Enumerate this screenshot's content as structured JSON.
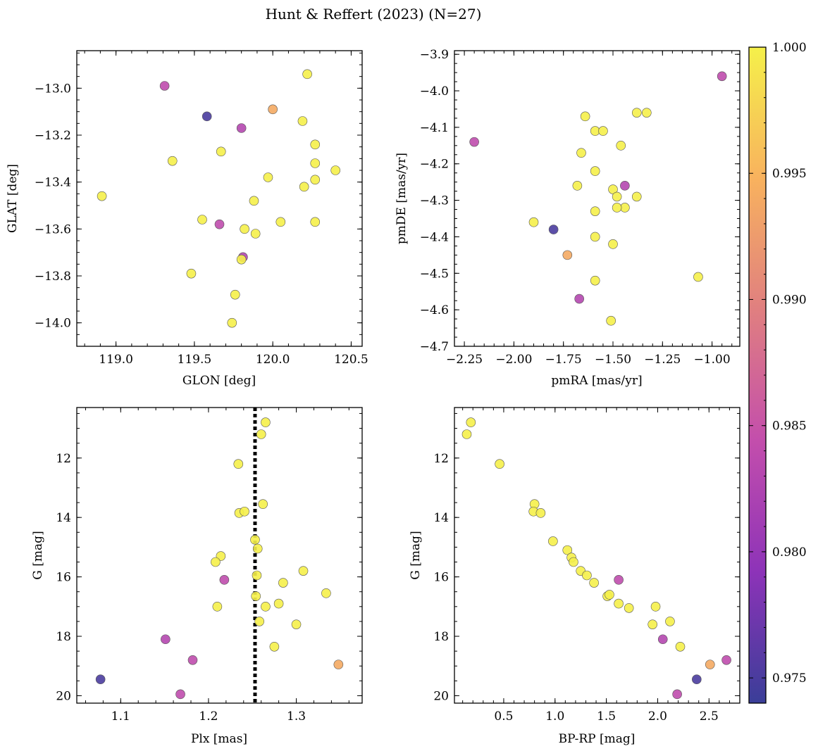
{
  "figure": {
    "title": "Hunt & Reffert (2023) (N=27)"
  },
  "colorbar": {
    "min": 0.974,
    "max": 1.0,
    "ticks": [
      0.975,
      0.98,
      0.985,
      0.99,
      0.995,
      1.0
    ],
    "tick_labels": [
      "0.975",
      "0.980",
      "0.985",
      "0.990",
      "0.995",
      "1.000"
    ],
    "colormap": "plasma",
    "stops": [
      "#3a3e98",
      "#8d33b8",
      "#c34eac",
      "#e07f80",
      "#f8b25e",
      "#f5f04a"
    ]
  },
  "chart_data": [
    {
      "type": "scatter",
      "panel": "top-left",
      "xlabel": "GLON [deg]",
      "ylabel": "GLAT [deg]",
      "xlim": [
        118.75,
        120.57
      ],
      "ylim": [
        -14.1,
        -12.84
      ],
      "xticks": [
        119.0,
        119.5,
        120.0,
        120.5
      ],
      "xtick_labels": [
        "119.0",
        "119.5",
        "120.0",
        "120.5"
      ],
      "yticks": [
        -13.0,
        -13.2,
        -13.4,
        -13.6,
        -13.8,
        -14.0
      ],
      "ytick_labels": [
        "−13.0",
        "−13.2",
        "−13.4",
        "−13.6",
        "−13.8",
        "−14.0"
      ],
      "points": [
        {
          "x": 120.22,
          "y": -12.94,
          "c": 1.0
        },
        {
          "x": 119.31,
          "y": -12.99,
          "c": 0.984
        },
        {
          "x": 120.0,
          "y": -13.09,
          "c": 0.994
        },
        {
          "x": 119.58,
          "y": -13.12,
          "c": 0.975
        },
        {
          "x": 120.19,
          "y": -13.14,
          "c": 1.0
        },
        {
          "x": 119.8,
          "y": -13.17,
          "c": 0.983
        },
        {
          "x": 120.27,
          "y": -13.24,
          "c": 1.0
        },
        {
          "x": 119.67,
          "y": -13.27,
          "c": 1.0
        },
        {
          "x": 119.36,
          "y": -13.31,
          "c": 1.0
        },
        {
          "x": 120.27,
          "y": -13.32,
          "c": 1.0
        },
        {
          "x": 120.4,
          "y": -13.35,
          "c": 1.0
        },
        {
          "x": 119.97,
          "y": -13.38,
          "c": 1.0
        },
        {
          "x": 120.27,
          "y": -13.39,
          "c": 1.0
        },
        {
          "x": 120.2,
          "y": -13.42,
          "c": 1.0
        },
        {
          "x": 118.91,
          "y": -13.46,
          "c": 1.0
        },
        {
          "x": 119.88,
          "y": -13.48,
          "c": 1.0
        },
        {
          "x": 119.55,
          "y": -13.56,
          "c": 1.0
        },
        {
          "x": 120.05,
          "y": -13.57,
          "c": 1.0
        },
        {
          "x": 120.27,
          "y": -13.57,
          "c": 1.0
        },
        {
          "x": 119.66,
          "y": -13.58,
          "c": 0.984
        },
        {
          "x": 119.82,
          "y": -13.6,
          "c": 1.0
        },
        {
          "x": 119.89,
          "y": -13.62,
          "c": 1.0
        },
        {
          "x": 119.81,
          "y": -13.72,
          "c": 0.983
        },
        {
          "x": 119.8,
          "y": -13.73,
          "c": 1.0
        },
        {
          "x": 119.48,
          "y": -13.79,
          "c": 1.0
        },
        {
          "x": 119.76,
          "y": -13.88,
          "c": 1.0
        },
        {
          "x": 119.74,
          "y": -14.0,
          "c": 1.0
        }
      ]
    },
    {
      "type": "scatter",
      "panel": "top-right",
      "xlabel": "pmRA [mas/yr]",
      "ylabel": "pmDE [mas/yr]",
      "xlim": [
        -2.3,
        -0.86
      ],
      "ylim": [
        -4.7,
        -3.89
      ],
      "xticks": [
        -2.25,
        -2.0,
        -1.75,
        -1.5,
        -1.25,
        -1.0
      ],
      "xtick_labels": [
        "−2.25",
        "−2.00",
        "−1.75",
        "−1.50",
        "−1.25",
        "−1.00"
      ],
      "yticks": [
        -3.9,
        -4.0,
        -4.1,
        -4.2,
        -4.3,
        -4.4,
        -4.5,
        -4.6,
        -4.7
      ],
      "ytick_labels": [
        "−3.9",
        "−4.0",
        "−4.1",
        "−4.2",
        "−4.3",
        "−4.4",
        "−4.5",
        "−4.6",
        "−4.7"
      ],
      "points": [
        {
          "x": -0.95,
          "y": -3.96,
          "c": 0.984
        },
        {
          "x": -1.38,
          "y": -4.06,
          "c": 1.0
        },
        {
          "x": -1.33,
          "y": -4.06,
          "c": 1.0
        },
        {
          "x": -1.64,
          "y": -4.07,
          "c": 1.0
        },
        {
          "x": -1.59,
          "y": -4.11,
          "c": 1.0
        },
        {
          "x": -1.55,
          "y": -4.11,
          "c": 1.0
        },
        {
          "x": -2.2,
          "y": -4.14,
          "c": 0.984
        },
        {
          "x": -1.46,
          "y": -4.15,
          "c": 1.0
        },
        {
          "x": -1.66,
          "y": -4.17,
          "c": 1.0
        },
        {
          "x": -1.59,
          "y": -4.22,
          "c": 1.0
        },
        {
          "x": -1.68,
          "y": -4.26,
          "c": 1.0
        },
        {
          "x": -1.44,
          "y": -4.26,
          "c": 0.983
        },
        {
          "x": -1.5,
          "y": -4.27,
          "c": 1.0
        },
        {
          "x": -1.48,
          "y": -4.29,
          "c": 1.0
        },
        {
          "x": -1.38,
          "y": -4.29,
          "c": 1.0
        },
        {
          "x": -1.44,
          "y": -4.32,
          "c": 1.0
        },
        {
          "x": -1.48,
          "y": -4.32,
          "c": 1.0
        },
        {
          "x": -1.59,
          "y": -4.33,
          "c": 1.0
        },
        {
          "x": -1.9,
          "y": -4.36,
          "c": 1.0
        },
        {
          "x": -1.8,
          "y": -4.38,
          "c": 0.975
        },
        {
          "x": -1.59,
          "y": -4.4,
          "c": 1.0
        },
        {
          "x": -1.5,
          "y": -4.42,
          "c": 1.0
        },
        {
          "x": -1.73,
          "y": -4.45,
          "c": 0.994
        },
        {
          "x": -1.07,
          "y": -4.51,
          "c": 1.0
        },
        {
          "x": -1.59,
          "y": -4.52,
          "c": 1.0
        },
        {
          "x": -1.67,
          "y": -4.57,
          "c": 0.983
        },
        {
          "x": -1.51,
          "y": -4.63,
          "c": 1.0
        }
      ]
    },
    {
      "type": "scatter",
      "panel": "bottom-left",
      "xlabel": "Plx [mas]",
      "ylabel": "G [mag]",
      "xlim": [
        1.05,
        1.375
      ],
      "ylim": [
        20.25,
        10.3
      ],
      "xticks": [
        1.1,
        1.2,
        1.3
      ],
      "xtick_labels": [
        "1.1",
        "1.2",
        "1.3"
      ],
      "yticks": [
        12,
        14,
        16,
        18,
        20
      ],
      "ytick_labels": [
        "12",
        "14",
        "16",
        "18",
        "20"
      ],
      "reference_line": {
        "x": 1.253,
        "style": "dotted",
        "color": "#000000"
      },
      "points": [
        {
          "x": 1.265,
          "y": 10.8,
          "c": 1.0
        },
        {
          "x": 1.26,
          "y": 11.2,
          "c": 1.0
        },
        {
          "x": 1.234,
          "y": 12.2,
          "c": 1.0
        },
        {
          "x": 1.262,
          "y": 13.55,
          "c": 1.0
        },
        {
          "x": 1.235,
          "y": 13.85,
          "c": 1.0
        },
        {
          "x": 1.241,
          "y": 13.8,
          "c": 1.0
        },
        {
          "x": 1.253,
          "y": 14.75,
          "c": 1.0
        },
        {
          "x": 1.256,
          "y": 15.05,
          "c": 1.0
        },
        {
          "x": 1.214,
          "y": 15.3,
          "c": 1.0
        },
        {
          "x": 1.208,
          "y": 15.5,
          "c": 1.0
        },
        {
          "x": 1.308,
          "y": 15.8,
          "c": 1.0
        },
        {
          "x": 1.255,
          "y": 15.95,
          "c": 1.0
        },
        {
          "x": 1.218,
          "y": 16.1,
          "c": 0.984
        },
        {
          "x": 1.285,
          "y": 16.2,
          "c": 1.0
        },
        {
          "x": 1.334,
          "y": 16.55,
          "c": 1.0
        },
        {
          "x": 1.254,
          "y": 16.65,
          "c": 1.0
        },
        {
          "x": 1.28,
          "y": 16.9,
          "c": 1.0
        },
        {
          "x": 1.265,
          "y": 17.0,
          "c": 1.0
        },
        {
          "x": 1.21,
          "y": 17.0,
          "c": 1.0
        },
        {
          "x": 1.258,
          "y": 17.5,
          "c": 1.0
        },
        {
          "x": 1.3,
          "y": 17.6,
          "c": 1.0
        },
        {
          "x": 1.151,
          "y": 18.1,
          "c": 0.983
        },
        {
          "x": 1.275,
          "y": 18.35,
          "c": 1.0
        },
        {
          "x": 1.182,
          "y": 18.8,
          "c": 0.984
        },
        {
          "x": 1.348,
          "y": 18.95,
          "c": 0.994
        },
        {
          "x": 1.077,
          "y": 19.45,
          "c": 0.975
        },
        {
          "x": 1.168,
          "y": 19.95,
          "c": 0.984
        }
      ]
    },
    {
      "type": "scatter",
      "panel": "bottom-right",
      "xlabel": "BP-RP [mag]",
      "ylabel": "G [mag]",
      "xlim": [
        0.02,
        2.8
      ],
      "ylim": [
        20.25,
        10.3
      ],
      "xticks": [
        0.5,
        1.0,
        1.5,
        2.0,
        2.5
      ],
      "xtick_labels": [
        "0.5",
        "1.0",
        "1.5",
        "2.0",
        "2.5"
      ],
      "yticks": [
        12,
        14,
        16,
        18,
        20
      ],
      "ytick_labels": [
        "12",
        "14",
        "16",
        "18",
        "20"
      ],
      "points": [
        {
          "x": 0.18,
          "y": 10.8,
          "c": 1.0
        },
        {
          "x": 0.14,
          "y": 11.2,
          "c": 1.0
        },
        {
          "x": 0.46,
          "y": 12.2,
          "c": 1.0
        },
        {
          "x": 0.8,
          "y": 13.55,
          "c": 1.0
        },
        {
          "x": 0.79,
          "y": 13.8,
          "c": 1.0
        },
        {
          "x": 0.86,
          "y": 13.85,
          "c": 1.0
        },
        {
          "x": 0.98,
          "y": 14.8,
          "c": 1.0
        },
        {
          "x": 1.12,
          "y": 15.1,
          "c": 1.0
        },
        {
          "x": 1.16,
          "y": 15.35,
          "c": 1.0
        },
        {
          "x": 1.18,
          "y": 15.5,
          "c": 1.0
        },
        {
          "x": 1.25,
          "y": 15.8,
          "c": 1.0
        },
        {
          "x": 1.31,
          "y": 15.95,
          "c": 1.0
        },
        {
          "x": 1.62,
          "y": 16.1,
          "c": 0.984
        },
        {
          "x": 1.38,
          "y": 16.2,
          "c": 1.0
        },
        {
          "x": 1.51,
          "y": 16.65,
          "c": 1.0
        },
        {
          "x": 1.53,
          "y": 16.6,
          "c": 1.0
        },
        {
          "x": 1.62,
          "y": 16.9,
          "c": 1.0
        },
        {
          "x": 1.72,
          "y": 17.05,
          "c": 1.0
        },
        {
          "x": 1.98,
          "y": 17.0,
          "c": 1.0
        },
        {
          "x": 2.12,
          "y": 17.5,
          "c": 1.0
        },
        {
          "x": 1.95,
          "y": 17.6,
          "c": 1.0
        },
        {
          "x": 2.05,
          "y": 18.1,
          "c": 0.983
        },
        {
          "x": 2.22,
          "y": 18.35,
          "c": 1.0
        },
        {
          "x": 2.67,
          "y": 18.8,
          "c": 0.984
        },
        {
          "x": 2.51,
          "y": 18.95,
          "c": 0.994
        },
        {
          "x": 2.38,
          "y": 19.45,
          "c": 0.975
        },
        {
          "x": 2.19,
          "y": 19.95,
          "c": 0.984
        }
      ]
    }
  ]
}
